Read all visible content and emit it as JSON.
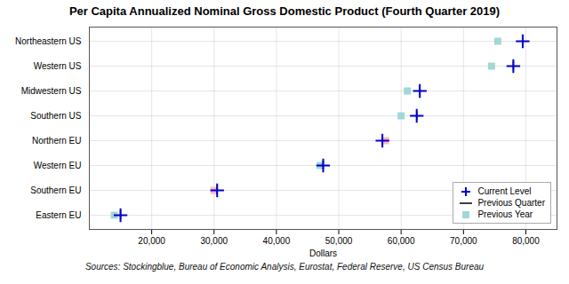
{
  "chart_data": {
    "type": "dot",
    "title": "Per Capita Annualized Nominal Gross Domestic Product (Fourth Quarter 2019)",
    "xlabel": "Dollars",
    "caption": "Sources: Stockingblue, Bureau of Economic Analysis, Eurostat, Federal Reserve, US Census Bureau",
    "categories": [
      "Northeastern US",
      "Western US",
      "Midwestern US",
      "Southern US",
      "Northern EU",
      "Western EU",
      "Southern EU",
      "Eastern EU"
    ],
    "series": [
      {
        "name": "Current Level",
        "color": "#0000cc",
        "marker": "plus",
        "values": [
          79500,
          78000,
          63000,
          62500,
          57000,
          47500,
          30500,
          15000
        ]
      },
      {
        "name": "Previous Quarter",
        "color": "#000000",
        "marker": "line",
        "values": [
          79500,
          78000,
          63000,
          62500,
          57000,
          47500,
          30500,
          15000
        ]
      },
      {
        "name": "Previous Year",
        "color": "#a0d8d8",
        "marker": "square",
        "colors": [
          "#a0d8d8",
          "#a0d8d8",
          "#a0d8d8",
          "#a0d8d8",
          "#ffb6c1",
          "#a0d8d8",
          "#ffb6c1",
          "#a0d8d8"
        ],
        "values": [
          75500,
          74500,
          61000,
          60000,
          57500,
          47000,
          30000,
          14000
        ]
      }
    ],
    "xlim": [
      10000,
      85000
    ],
    "xticks": [
      {
        "value": 20000,
        "label": "20,000"
      },
      {
        "value": 30000,
        "label": "30,000"
      },
      {
        "value": 40000,
        "label": "40,000"
      },
      {
        "value": 50000,
        "label": "50,000"
      },
      {
        "value": 60000,
        "label": "60,000"
      },
      {
        "value": 70000,
        "label": "70,000"
      },
      {
        "value": 80000,
        "label": "80,000"
      }
    ],
    "grid": true,
    "legend": "lower right"
  }
}
